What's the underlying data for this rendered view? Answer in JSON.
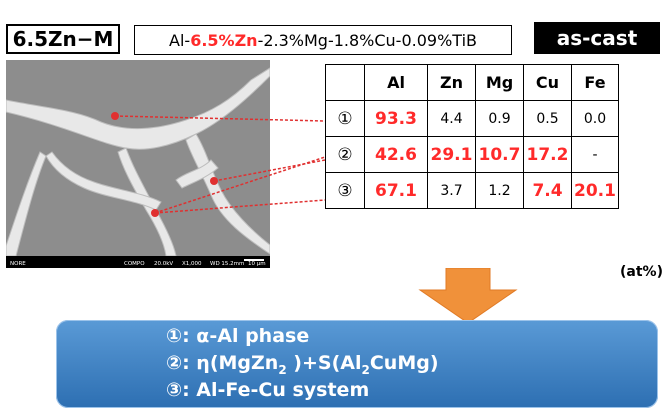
{
  "header": {
    "sample": "6.5Zn−M",
    "alloy_pre": "Al-",
    "alloy_zn": "6.5%Zn",
    "alloy_post": "-2.3%Mg-1.8%Cu-0.09%TiB",
    "condition": "as-cast"
  },
  "micrograph": {
    "footer": [
      "NORE",
      "COMPO",
      "20.0kV",
      "X1,000",
      "WD 15.2mm",
      "10 μm"
    ]
  },
  "table": {
    "columns": [
      "",
      "Al",
      "Zn",
      "Mg",
      "Cu",
      "Fe"
    ],
    "rows": [
      {
        "mark": "①",
        "cells": [
          "93.3",
          "4.4",
          "0.9",
          "0.5",
          "0.0"
        ]
      },
      {
        "mark": "②",
        "cells": [
          "42.6",
          "29.1",
          "10.7",
          "17.2",
          "-"
        ]
      },
      {
        "mark": "③",
        "cells": [
          "67.1",
          "3.7",
          "1.2",
          "7.4",
          "20.1"
        ]
      }
    ],
    "unit": "(at%)"
  },
  "phases": {
    "p1": {
      "mark": "①",
      "text": ": α-Al   phase"
    },
    "p2": {
      "mark": "②",
      "a": ": η(MgZn",
      "b": "2",
      "c": " )+S(Al",
      "d": "2",
      "e": "CuMg)"
    },
    "p3": {
      "mark": "③",
      "text": ": Al-Fe-Cu system"
    }
  },
  "colors": {
    "highlight": "#ff2a2a",
    "panel": "#3a7fc4",
    "arrow": "#f0913a"
  }
}
